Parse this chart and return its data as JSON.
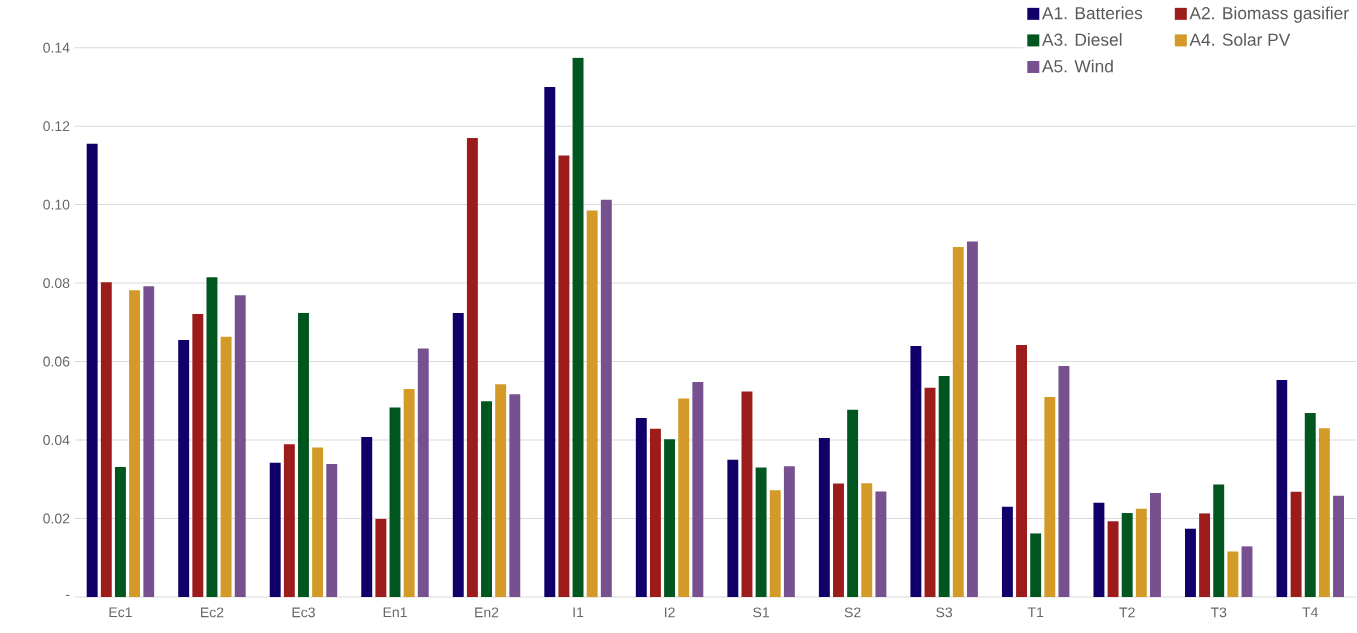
{
  "chart_data": {
    "type": "bar",
    "categories": [
      "Ec1",
      "Ec2",
      "Ec3",
      "En1",
      "En2",
      "I1",
      "I2",
      "S1",
      "S2",
      "S3",
      "T1",
      "T2",
      "T3",
      "T4"
    ],
    "series": [
      {
        "name": "A1. Batteries",
        "color": "#10006a",
        "values": [
          0.1155,
          0.0655,
          0.0342,
          0.0408,
          0.0724,
          0.13,
          0.0456,
          0.035,
          0.0405,
          0.064,
          0.023,
          0.024,
          0.0174,
          0.0553
        ]
      },
      {
        "name": "A2. Biomass gasifier",
        "color": "#9c1c1c",
        "values": [
          0.0802,
          0.0721,
          0.0389,
          0.0199,
          0.117,
          0.1125,
          0.0429,
          0.0524,
          0.0289,
          0.0533,
          0.0642,
          0.0193,
          0.0213,
          0.0268
        ]
      },
      {
        "name": "A3. Diesel",
        "color": "#00561e",
        "values": [
          0.0331,
          0.0815,
          0.0724,
          0.0483,
          0.0499,
          0.1374,
          0.0402,
          0.033,
          0.0477,
          0.0563,
          0.0162,
          0.0214,
          0.0287,
          0.0469
        ]
      },
      {
        "name": "A4. Solar PV",
        "color": "#d49a28",
        "values": [
          0.0782,
          0.0663,
          0.0381,
          0.053,
          0.0542,
          0.0985,
          0.0506,
          0.0272,
          0.029,
          0.0892,
          0.051,
          0.0225,
          0.0116,
          0.043
        ]
      },
      {
        "name": "A5. Wind",
        "color": "#76508f",
        "values": [
          0.0792,
          0.0769,
          0.0339,
          0.0633,
          0.0517,
          0.1013,
          0.0548,
          0.0333,
          0.0269,
          0.0906,
          0.0589,
          0.0265,
          0.0129,
          0.0258
        ]
      }
    ],
    "ylim": [
      0,
      0.14
    ],
    "yticks": [
      {
        "value": 0,
        "label": "-"
      },
      {
        "value": 0.02,
        "label": "0.02"
      },
      {
        "value": 0.04,
        "label": "0.04"
      },
      {
        "value": 0.06,
        "label": "0.06"
      },
      {
        "value": 0.08,
        "label": "0.08"
      },
      {
        "value": 0.1,
        "label": "0.10"
      },
      {
        "value": 0.12,
        "label": "0.12"
      },
      {
        "value": 0.14,
        "label": "0.14"
      }
    ],
    "grid": "y",
    "legend": "top right"
  }
}
